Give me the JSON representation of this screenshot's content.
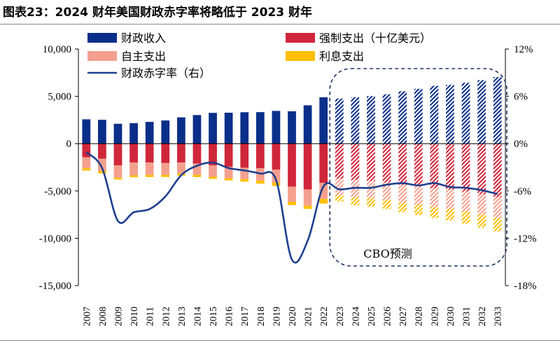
{
  "title": "图表23：2024 财年美国财政赤字率将略低于 2023 财年",
  "chart_data": {
    "type": "bar",
    "categories": [
      "2007",
      "2008",
      "2009",
      "2010",
      "2011",
      "2012",
      "2013",
      "2014",
      "2015",
      "2016",
      "2017",
      "2018",
      "2019",
      "2020",
      "2021",
      "2022",
      "2023",
      "2024",
      "2025",
      "2026",
      "2027",
      "2028",
      "2029",
      "2030",
      "2031",
      "2032",
      "2033"
    ],
    "forecast_start_index": 16,
    "ylim_left": [
      -15000,
      10000
    ],
    "ylim_right": [
      -18,
      12
    ],
    "yticks_left": [
      10000,
      5000,
      0,
      -5000,
      -10000,
      -15000
    ],
    "yticks_left_labels": [
      "10,000",
      "5,000",
      "0",
      "-5,000",
      "-10,000",
      "-15,000"
    ],
    "yticks_right": [
      12,
      6,
      0,
      -6,
      -12,
      -18
    ],
    "yticks_right_labels": [
      "12%",
      "6%",
      "0%",
      "-6%",
      "-12%",
      "-18%"
    ],
    "series": [
      {
        "name": "财政收入",
        "type": "bar",
        "axis": "left",
        "color": "#0a2f8a",
        "values": [
          2570,
          2520,
          2100,
          2160,
          2300,
          2450,
          2780,
          3020,
          3250,
          3270,
          3320,
          3330,
          3460,
          3420,
          4050,
          4900,
          4770,
          4900,
          5030,
          5210,
          5540,
          5800,
          6110,
          6210,
          6430,
          6710,
          7040
        ]
      },
      {
        "name": "强制支出（十亿美元）",
        "type": "bar",
        "axis": "left",
        "color": "#d0263a",
        "values": [
          -1450,
          -1600,
          -2300,
          -2000,
          -2000,
          -2050,
          -2000,
          -2100,
          -2300,
          -2450,
          -2550,
          -2600,
          -2750,
          -4550,
          -4850,
          -4150,
          -3700,
          -3850,
          -3950,
          -4100,
          -4350,
          -4500,
          -4700,
          -4850,
          -5050,
          -5350,
          -5650
        ]
      },
      {
        "name": "自主支出",
        "type": "bar",
        "axis": "left",
        "color": "#f5a08e",
        "values": [
          -1150,
          -1300,
          -1300,
          -1350,
          -1300,
          -1250,
          -1150,
          -1200,
          -1200,
          -1200,
          -1200,
          -1300,
          -1350,
          -1600,
          -1700,
          -1700,
          -1750,
          -1800,
          -1800,
          -1850,
          -1900,
          -1950,
          -2000,
          -2050,
          -2100,
          -2150,
          -2200
        ]
      },
      {
        "name": "利息支出",
        "type": "bar",
        "axis": "left",
        "color": "#ffc000",
        "values": [
          -240,
          -250,
          -190,
          -200,
          -230,
          -220,
          -220,
          -230,
          -220,
          -240,
          -260,
          -330,
          -370,
          -350,
          -350,
          -480,
          -660,
          -870,
          -930,
          -950,
          -1000,
          -1100,
          -1150,
          -1200,
          -1300,
          -1360,
          -1420
        ]
      },
      {
        "name": "财政赤字率（右）",
        "type": "line",
        "axis": "right",
        "color": "#1f3f8f",
        "values": [
          -1.1,
          -3.1,
          -9.8,
          -8.7,
          -8.3,
          -6.7,
          -4.0,
          -2.8,
          -2.4,
          -3.1,
          -3.4,
          -3.8,
          -4.6,
          -14.7,
          -12.3,
          -5.4,
          -5.8,
          -5.6,
          -5.6,
          -5.2,
          -5.0,
          -5.3,
          -5.0,
          -5.5,
          -5.6,
          -5.9,
          -6.4
        ]
      }
    ],
    "legend": [
      "财政收入",
      "强制支出（十亿美元）",
      "自主支出",
      "利息支出",
      "财政赤字率（右）"
    ],
    "annotation": "CBO预测"
  }
}
